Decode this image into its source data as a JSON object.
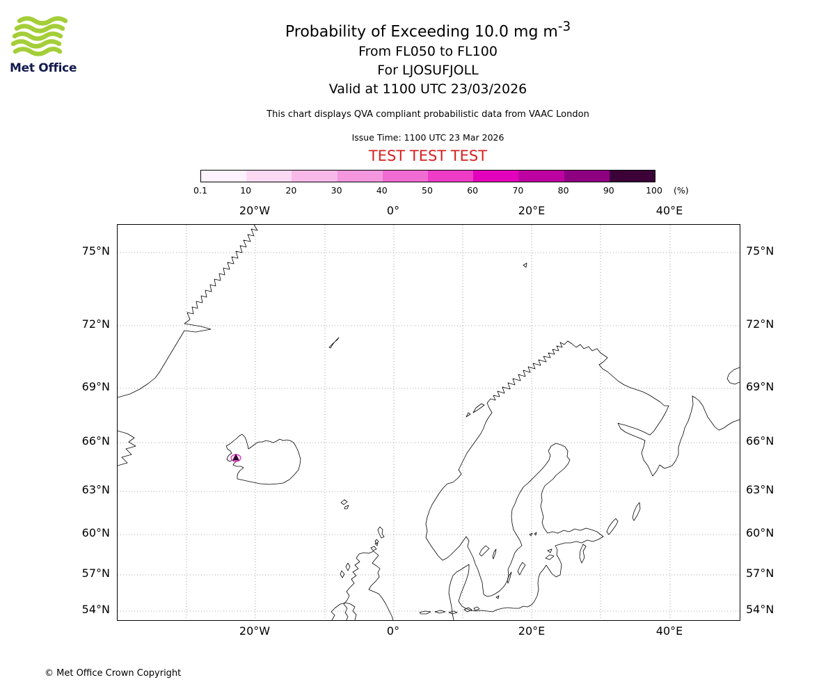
{
  "logo": {
    "brand": "Met Office",
    "wave_color": "#a4ce39"
  },
  "header": {
    "title": "Probability of Exceeding 10.0 mg m",
    "title_sup": "-3",
    "line1": "From FL050 to FL100",
    "line2": "For LJOSUFJOLL",
    "line3": "Valid at 1100 UTC 23/03/2026",
    "note": "This chart displays QVA compliant probabilistic data from VAAC London",
    "issue_time": "Issue Time: 1100 UTC 23 Mar 2026",
    "test_banner": "TEST TEST TEST",
    "test_color": "#d62020"
  },
  "colorbar": {
    "tick_labels": [
      "0.1",
      "10",
      "20",
      "30",
      "40",
      "50",
      "60",
      "70",
      "80",
      "90",
      "100"
    ],
    "unit": "(%)",
    "colors": [
      "#fdf2fb",
      "#fbd9f3",
      "#f8b9e9",
      "#f497de",
      "#f16cd2",
      "#ee3cc6",
      "#e403bc",
      "#bd02a1",
      "#8e0181",
      "#3c0137"
    ]
  },
  "map": {
    "lat_labels": [
      "75°N",
      "72°N",
      "69°N",
      "66°N",
      "63°N",
      "60°N",
      "57°N",
      "54°N"
    ],
    "lon_labels": [
      "20°W",
      "0°",
      "20°E",
      "40°E"
    ],
    "marker": {
      "name": "LJOSUFJOLL",
      "contour_color": "#d400b8",
      "fill_color": "#33002e"
    }
  },
  "footer": {
    "copyright": "© Met Office Crown Copyright"
  }
}
